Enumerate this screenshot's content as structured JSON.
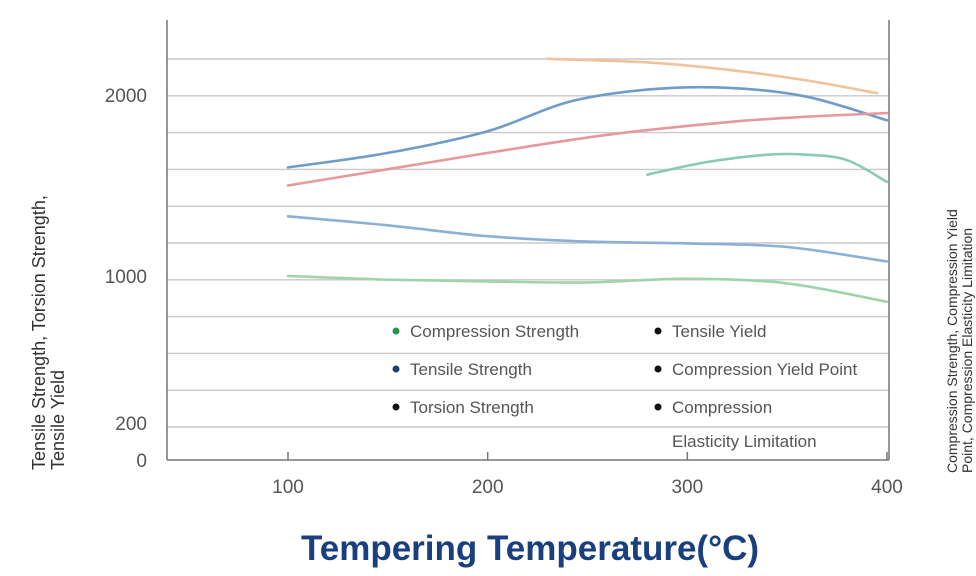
{
  "chart_data": {
    "type": "line",
    "xlabel": "Tempering Temperature(°C)",
    "ylabel_lines": [
      "Tensile Strength, Torsion Strength,",
      "Tensile Yield"
    ],
    "ylabel_right_lines": [
      "Compression Strength, Compression Yield",
      "Point, Compression Elasticity Limitation"
    ],
    "xlim": [
      0,
      400
    ],
    "ylim": [
      0,
      2400
    ],
    "x_ticks": [
      {
        "value": 100,
        "label": "100"
      },
      {
        "value": 200,
        "label": "200"
      },
      {
        "value": 300,
        "label": "300"
      },
      {
        "value": 400,
        "label": "400"
      }
    ],
    "y_ticks": [
      {
        "value": 0,
        "label": "0"
      },
      {
        "value": 200,
        "label": "200"
      },
      {
        "value": 1000,
        "label": "1000"
      },
      {
        "value": 2000,
        "label": "2000"
      }
    ],
    "grid": true,
    "legend_position": "bottom-right",
    "series": [
      {
        "name": "Compression Strength",
        "color": "#eec39a",
        "marker_color": "#1f9a48",
        "points": [
          [
            230,
            2200
          ],
          [
            280,
            2180
          ],
          [
            320,
            2140
          ],
          [
            360,
            2080
          ],
          [
            395,
            2010
          ]
        ]
      },
      {
        "name": "Tensile Strength",
        "color": "#6f9cc8",
        "marker_color": "#1a3f7f",
        "points": [
          [
            100,
            1600
          ],
          [
            150,
            1680
          ],
          [
            200,
            1800
          ],
          [
            240,
            1960
          ],
          [
            280,
            2030
          ],
          [
            320,
            2040
          ],
          [
            360,
            1990
          ],
          [
            400,
            1860
          ]
        ]
      },
      {
        "name": "Torsion Strength",
        "color": "#e6999c",
        "marker_color": "#111111",
        "points": [
          [
            100,
            1500
          ],
          [
            150,
            1590
          ],
          [
            200,
            1680
          ],
          [
            260,
            1780
          ],
          [
            320,
            1850
          ],
          [
            360,
            1880
          ],
          [
            400,
            1900
          ]
        ]
      },
      {
        "name": "Tensile Yield",
        "color": "#88cbb0",
        "marker_color": "#111111",
        "points": [
          [
            280,
            1560
          ],
          [
            310,
            1630
          ],
          [
            340,
            1670
          ],
          [
            360,
            1670
          ],
          [
            380,
            1640
          ],
          [
            400,
            1520
          ]
        ]
      },
      {
        "name": "Compression Yield Point",
        "color": "#8ab0d6",
        "marker_color": "#111111",
        "points": [
          [
            100,
            1330
          ],
          [
            150,
            1280
          ],
          [
            200,
            1220
          ],
          [
            250,
            1190
          ],
          [
            300,
            1180
          ],
          [
            350,
            1160
          ],
          [
            400,
            1080
          ]
        ]
      },
      {
        "name": "Compression Elasticity Limitation",
        "legend_lines": [
          "Compression",
          "Elasticity Limitation"
        ],
        "color": "#9ed4a7",
        "marker_color": "#111111",
        "points": [
          [
            100,
            1000
          ],
          [
            150,
            980
          ],
          [
            200,
            970
          ],
          [
            250,
            965
          ],
          [
            300,
            985
          ],
          [
            350,
            960
          ],
          [
            400,
            860
          ]
        ]
      }
    ]
  }
}
